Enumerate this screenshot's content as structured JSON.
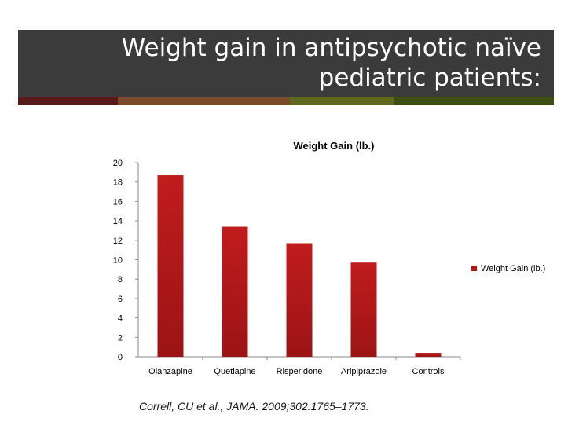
{
  "slide": {
    "title_line1": "Weight gain in antipsychotic naïve",
    "title_line2": "pediatric patients:",
    "citation": "Correll, CU et al., JAMA. 2009;302:1765–1773.",
    "accent_colors": [
      "#5a1a1a",
      "#7a4a2a",
      "#5f6a1e",
      "#3f4f12"
    ]
  },
  "chart_data": {
    "type": "bar",
    "title": "Weight Gain (lb.)",
    "categories": [
      "Olanzapine",
      "Quetiapine",
      "Risperidone",
      "Aripiprazole",
      "Controls"
    ],
    "series": [
      {
        "name": "Weight Gain (lb.)",
        "values": [
          18.7,
          13.4,
          11.7,
          9.7,
          0.4
        ],
        "color": "#b01818"
      }
    ],
    "ylim": [
      0,
      20
    ],
    "yticks": [
      "0",
      "2",
      "4",
      "6",
      "8",
      "10",
      "12",
      "14",
      "16",
      "18",
      "20"
    ],
    "grid": false,
    "legend": "right"
  }
}
